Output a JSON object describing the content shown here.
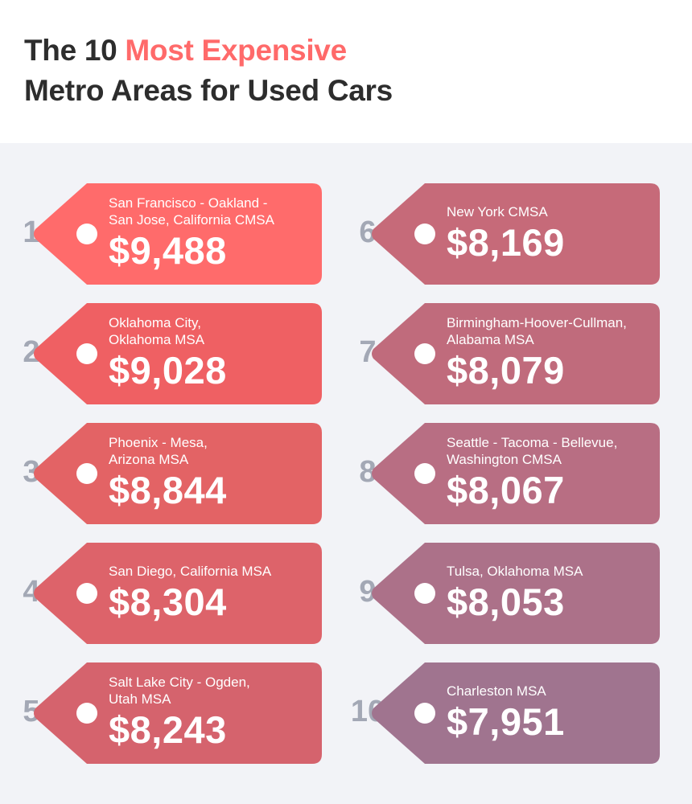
{
  "title": {
    "line1_prefix": "The 10 ",
    "line1_accent": "Most Expensive",
    "line2": "Metro Areas for Used Cars"
  },
  "items": [
    {
      "rank": "1",
      "location": "San Francisco - Oakland -\nSan Jose, California CMSA",
      "price": "$9,488",
      "color": "#ff6b6b"
    },
    {
      "rank": "2",
      "location": "Oklahoma City,\nOklahoma MSA",
      "price": "$9,028",
      "color": "#ef6063"
    },
    {
      "rank": "3",
      "location": "Phoenix - Mesa,\nArizona MSA",
      "price": "$8,844",
      "color": "#e36365"
    },
    {
      "rank": "4",
      "location": "San Diego, California MSA",
      "price": "$8,304",
      "color": "#dd636a"
    },
    {
      "rank": "5",
      "location": "Salt Lake City - Ogden,\nUtah MSA",
      "price": "$8,243",
      "color": "#d5636d"
    },
    {
      "rank": "6",
      "location": "New York CMSA",
      "price": "$8,169",
      "color": "#c66a79"
    },
    {
      "rank": "7",
      "location": "Birmingham-Hoover-Cullman,\nAlabama MSA",
      "price": "$8,079",
      "color": "#c06b7c"
    },
    {
      "rank": "8",
      "location": "Seattle - Tacoma - Bellevue,\nWashington CMSA",
      "price": "$8,067",
      "color": "#b86e83"
    },
    {
      "rank": "9",
      "location": "Tulsa, Oklahoma MSA",
      "price": "$8,053",
      "color": "#ac7189"
    },
    {
      "rank": "10",
      "location": "Charleston MSA",
      "price": "$7,951",
      "color": "#a0748f"
    }
  ]
}
